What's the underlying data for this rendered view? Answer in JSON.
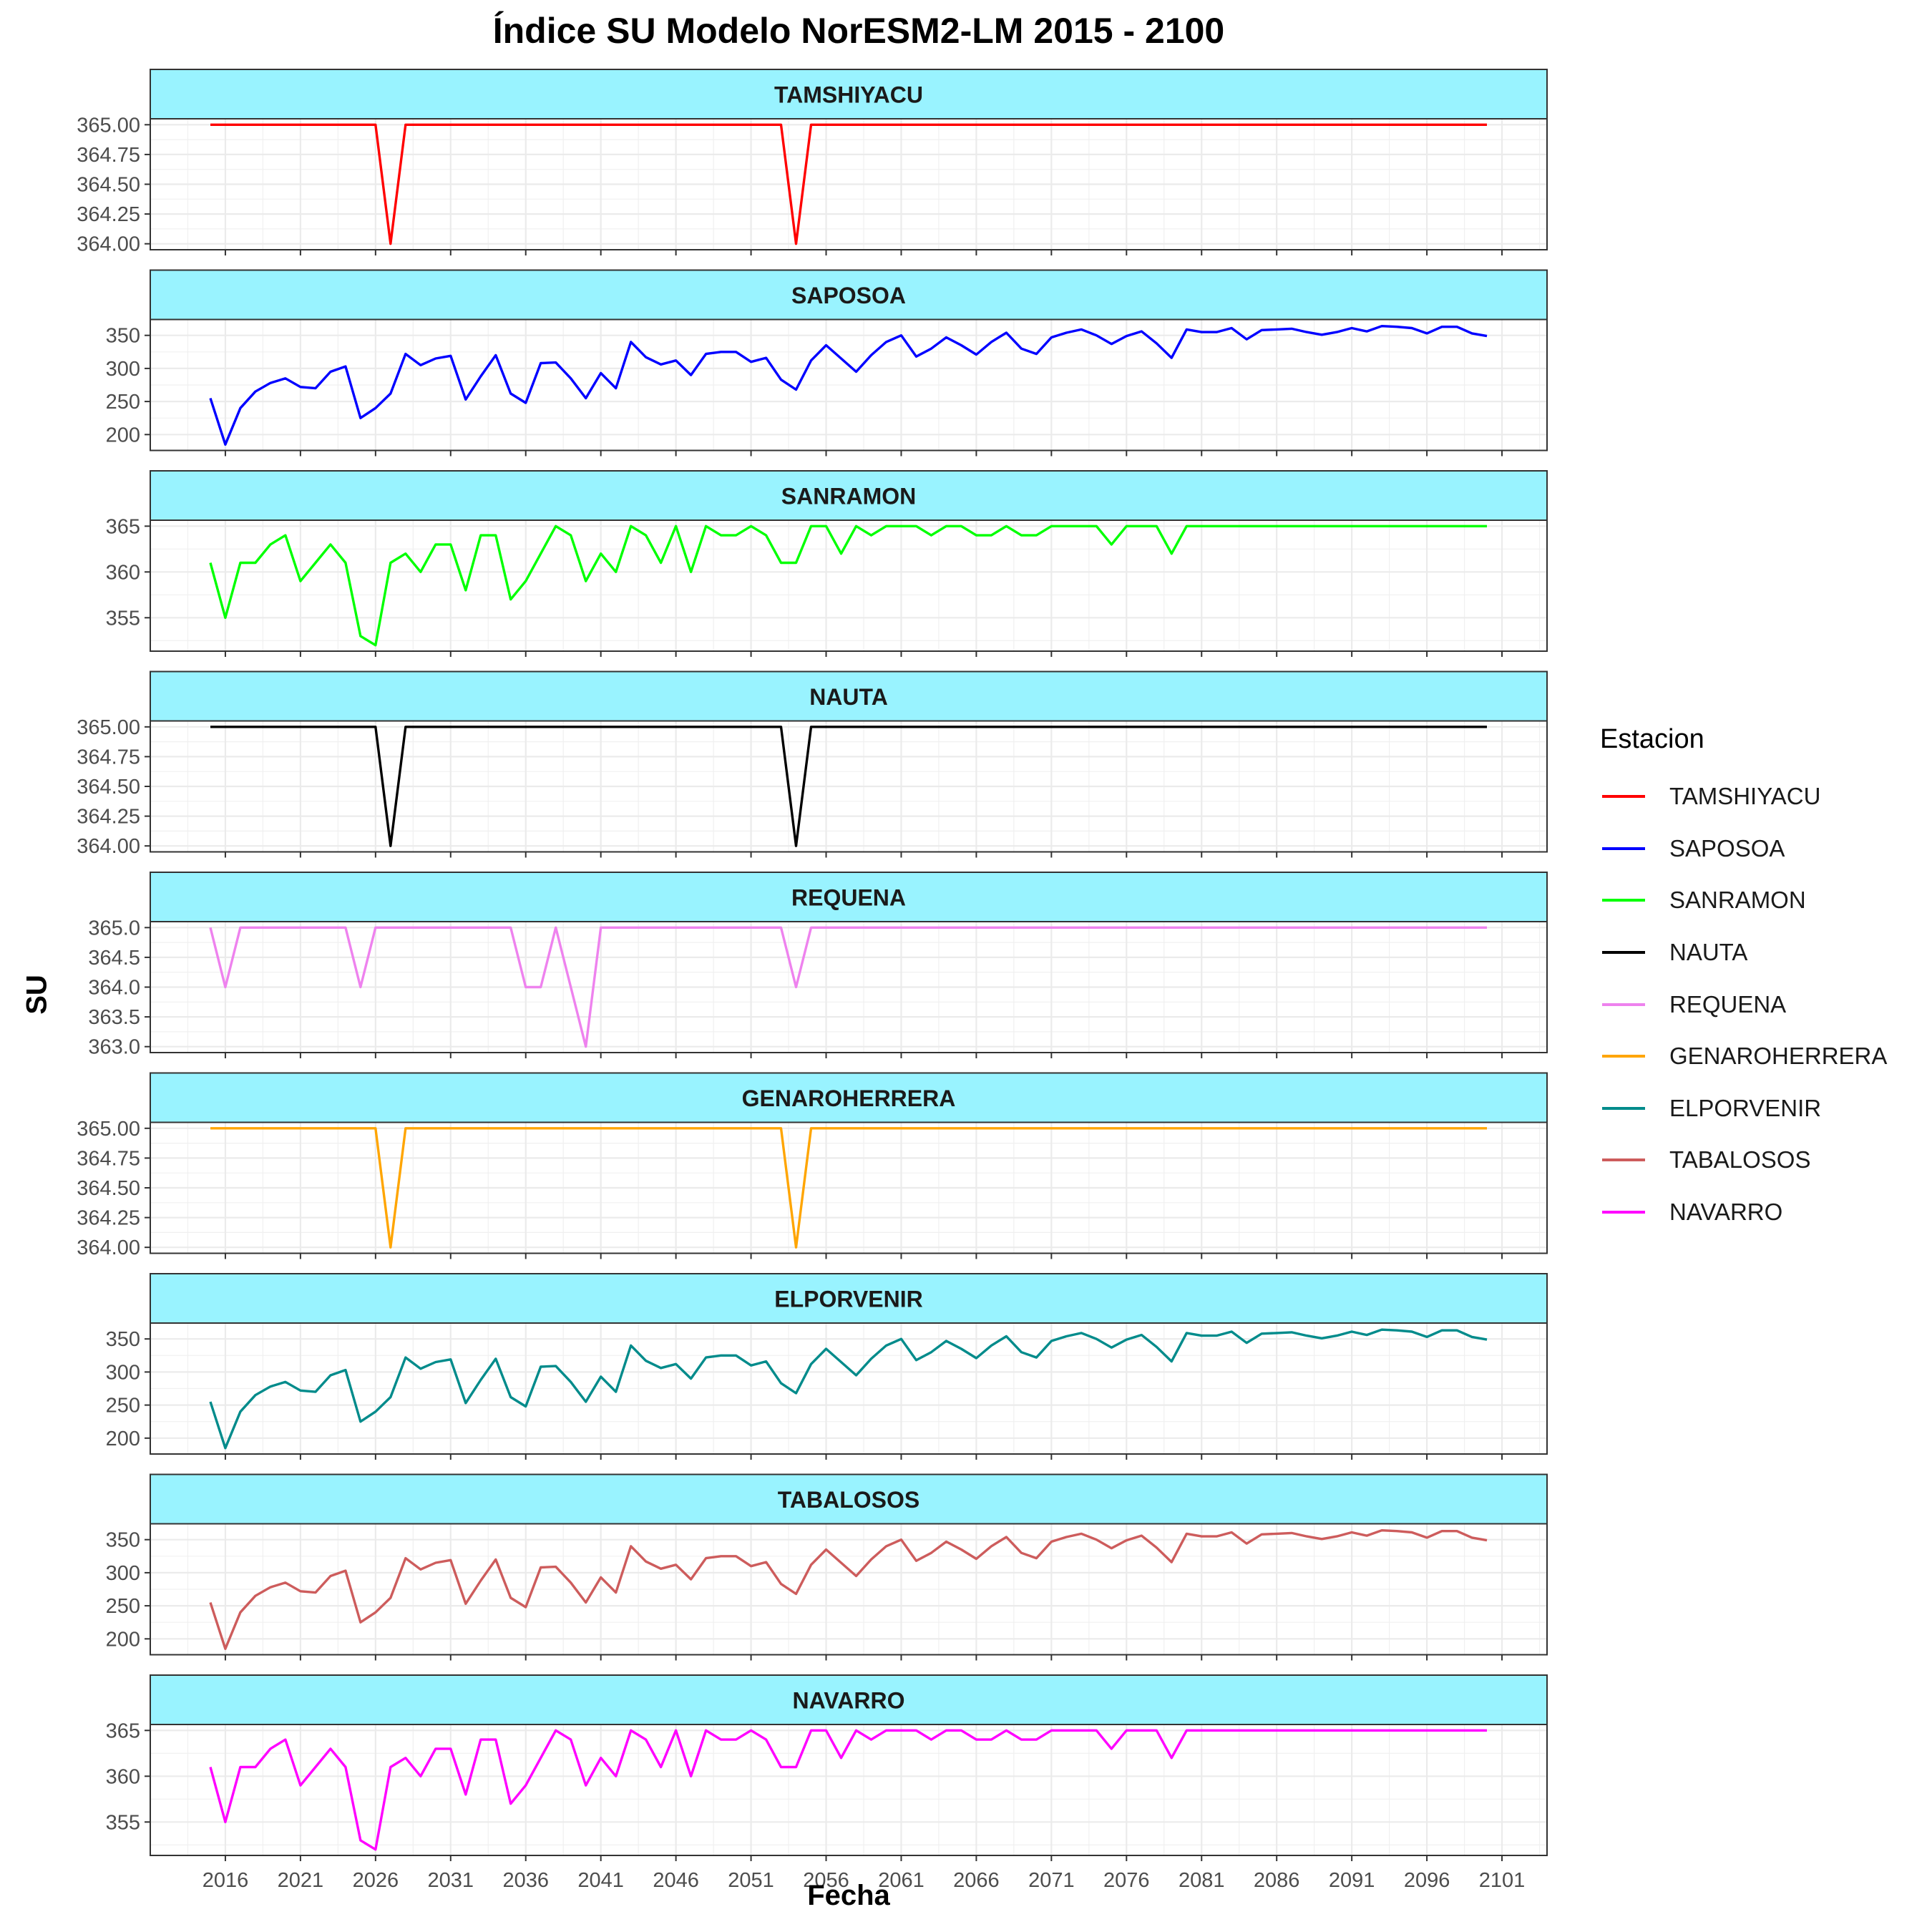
{
  "chart_data": {
    "type": "line",
    "title": "Índice SU Modelo NorESM2-LM 2015 - 2100",
    "xlabel": "Fecha",
    "ylabel": "SU",
    "x_tick_labels": [
      "2016",
      "2021",
      "2026",
      "2031",
      "2036",
      "2041",
      "2046",
      "2051",
      "2056",
      "2061",
      "2066",
      "2071",
      "2076",
      "2081",
      "2086",
      "2091",
      "2096",
      "2101"
    ],
    "xlim": [
      2011,
      2104
    ],
    "x": [
      2015,
      2016,
      2017,
      2018,
      2019,
      2020,
      2021,
      2022,
      2023,
      2024,
      2025,
      2026,
      2027,
      2028,
      2029,
      2030,
      2031,
      2032,
      2033,
      2034,
      2035,
      2036,
      2037,
      2038,
      2039,
      2040,
      2041,
      2042,
      2043,
      2044,
      2045,
      2046,
      2047,
      2048,
      2049,
      2050,
      2051,
      2052,
      2053,
      2054,
      2055,
      2056,
      2057,
      2058,
      2059,
      2060,
      2061,
      2062,
      2063,
      2064,
      2065,
      2066,
      2067,
      2068,
      2069,
      2070,
      2071,
      2072,
      2073,
      2074,
      2075,
      2076,
      2077,
      2078,
      2079,
      2080,
      2081,
      2082,
      2083,
      2084,
      2085,
      2086,
      2087,
      2088,
      2089,
      2090,
      2091,
      2092,
      2093,
      2094,
      2095,
      2096,
      2097,
      2098,
      2099,
      2100
    ],
    "legend_title": "Estacion",
    "legend_position": "right",
    "grid": true,
    "facet_strip_color": "#99f3ff",
    "series": [
      {
        "name": "TAMSHIYACU",
        "color": "#ff0000",
        "ylim": [
          364.0,
          365.0
        ],
        "y_ticks": [
          365.0,
          364.75,
          364.5,
          364.25,
          364.0
        ],
        "y_tick_labels": [
          "365.00",
          "364.75",
          "364.50",
          "364.25",
          "364.00"
        ],
        "values": [
          365,
          365,
          365,
          365,
          365,
          365,
          365,
          365,
          365,
          365,
          365,
          365,
          364,
          365,
          365,
          365,
          365,
          365,
          365,
          365,
          365,
          365,
          365,
          365,
          365,
          365,
          365,
          365,
          365,
          365,
          365,
          365,
          365,
          365,
          365,
          365,
          365,
          365,
          365,
          364,
          365,
          365,
          365,
          365,
          365,
          365,
          365,
          365,
          365,
          365,
          365,
          365,
          365,
          365,
          365,
          365,
          365,
          365,
          365,
          365,
          365,
          365,
          365,
          365,
          365,
          365,
          365,
          365,
          365,
          365,
          365,
          365,
          365,
          365,
          365,
          365,
          365,
          365,
          365,
          365,
          365,
          365,
          365,
          365,
          365,
          365
        ]
      },
      {
        "name": "SAPOSOA",
        "color": "#0000ff",
        "ylim": [
          185,
          365
        ],
        "y_ticks": [
          350,
          300,
          250,
          200
        ],
        "y_tick_labels": [
          "350",
          "300",
          "250",
          "200"
        ],
        "values": [
          255,
          185,
          240,
          265,
          278,
          285,
          272,
          270,
          295,
          303,
          225,
          240,
          262,
          322,
          305,
          315,
          319,
          253,
          288,
          320,
          262,
          248,
          308,
          309,
          285,
          255,
          293,
          270,
          340,
          317,
          306,
          312,
          290,
          322,
          325,
          325,
          310,
          316,
          283,
          268,
          312,
          335,
          315,
          295,
          320,
          340,
          350,
          318,
          330,
          347,
          335,
          321,
          340,
          354,
          330,
          322,
          347,
          354,
          359,
          350,
          337,
          349,
          356,
          338,
          316,
          359,
          355,
          355,
          361,
          344,
          358,
          359,
          360,
          355,
          351,
          355,
          361,
          356,
          364,
          363,
          361,
          353,
          363,
          363,
          353,
          349
        ]
      },
      {
        "name": "SANRAMON",
        "color": "#00ff00",
        "ylim": [
          352,
          365
        ],
        "y_ticks": [
          365,
          360,
          355
        ],
        "y_tick_labels": [
          "365",
          "360",
          "355"
        ],
        "values": [
          361,
          355,
          361,
          361,
          363,
          364,
          359,
          361,
          363,
          361,
          353,
          352,
          361,
          362,
          360,
          363,
          363,
          358,
          364,
          364,
          357,
          359,
          362,
          365,
          364,
          359,
          362,
          360,
          365,
          364,
          361,
          365,
          360,
          365,
          364,
          364,
          365,
          364,
          361,
          361,
          365,
          365,
          362,
          365,
          364,
          365,
          365,
          365,
          364,
          365,
          365,
          364,
          364,
          365,
          364,
          364,
          365,
          365,
          365,
          365,
          363,
          365,
          365,
          365,
          362,
          365,
          365,
          365,
          365,
          365,
          365,
          365,
          365,
          365,
          365,
          365,
          365,
          365,
          365,
          365,
          365,
          365,
          365,
          365,
          365,
          365
        ]
      },
      {
        "name": "NAUTA",
        "color": "#000000",
        "ylim": [
          364.0,
          365.0
        ],
        "y_ticks": [
          365.0,
          364.75,
          364.5,
          364.25,
          364.0
        ],
        "y_tick_labels": [
          "365.00",
          "364.75",
          "364.50",
          "364.25",
          "364.00"
        ],
        "values": [
          365,
          365,
          365,
          365,
          365,
          365,
          365,
          365,
          365,
          365,
          365,
          365,
          364,
          365,
          365,
          365,
          365,
          365,
          365,
          365,
          365,
          365,
          365,
          365,
          365,
          365,
          365,
          365,
          365,
          365,
          365,
          365,
          365,
          365,
          365,
          365,
          365,
          365,
          365,
          364,
          365,
          365,
          365,
          365,
          365,
          365,
          365,
          365,
          365,
          365,
          365,
          365,
          365,
          365,
          365,
          365,
          365,
          365,
          365,
          365,
          365,
          365,
          365,
          365,
          365,
          365,
          365,
          365,
          365,
          365,
          365,
          365,
          365,
          365,
          365,
          365,
          365,
          365,
          365,
          365,
          365,
          365,
          365,
          365,
          365,
          365
        ]
      },
      {
        "name": "REQUENA",
        "color": "#ee82ee",
        "ylim": [
          363.0,
          365.0
        ],
        "y_ticks": [
          365.0,
          364.5,
          364.0,
          363.5,
          363.0
        ],
        "y_tick_labels": [
          "365.0",
          "364.5",
          "364.0",
          "363.5",
          "363.0"
        ],
        "values": [
          365,
          364,
          365,
          365,
          365,
          365,
          365,
          365,
          365,
          365,
          364,
          365,
          365,
          365,
          365,
          365,
          365,
          365,
          365,
          365,
          365,
          364,
          364,
          365,
          364,
          363,
          365,
          365,
          365,
          365,
          365,
          365,
          365,
          365,
          365,
          365,
          365,
          365,
          365,
          364,
          365,
          365,
          365,
          365,
          365,
          365,
          365,
          365,
          365,
          365,
          365,
          365,
          365,
          365,
          365,
          365,
          365,
          365,
          365,
          365,
          365,
          365,
          365,
          365,
          365,
          365,
          365,
          365,
          365,
          365,
          365,
          365,
          365,
          365,
          365,
          365,
          365,
          365,
          365,
          365,
          365,
          365,
          365,
          365,
          365,
          365
        ]
      },
      {
        "name": "GENAROHERRERA",
        "color": "#ffa500",
        "ylim": [
          364.0,
          365.0
        ],
        "y_ticks": [
          365.0,
          364.75,
          364.5,
          364.25,
          364.0
        ],
        "y_tick_labels": [
          "365.00",
          "364.75",
          "364.50",
          "364.25",
          "364.00"
        ],
        "values": [
          365,
          365,
          365,
          365,
          365,
          365,
          365,
          365,
          365,
          365,
          365,
          365,
          364,
          365,
          365,
          365,
          365,
          365,
          365,
          365,
          365,
          365,
          365,
          365,
          365,
          365,
          365,
          365,
          365,
          365,
          365,
          365,
          365,
          365,
          365,
          365,
          365,
          365,
          365,
          364,
          365,
          365,
          365,
          365,
          365,
          365,
          365,
          365,
          365,
          365,
          365,
          365,
          365,
          365,
          365,
          365,
          365,
          365,
          365,
          365,
          365,
          365,
          365,
          365,
          365,
          365,
          365,
          365,
          365,
          365,
          365,
          365,
          365,
          365,
          365,
          365,
          365,
          365,
          365,
          365,
          365,
          365,
          365,
          365,
          365,
          365
        ]
      },
      {
        "name": "ELPORVENIR",
        "color": "#008b8b",
        "ylim": [
          185,
          365
        ],
        "y_ticks": [
          350,
          300,
          250,
          200
        ],
        "y_tick_labels": [
          "350",
          "300",
          "250",
          "200"
        ],
        "values": [
          255,
          185,
          240,
          265,
          278,
          285,
          272,
          270,
          295,
          303,
          225,
          240,
          262,
          322,
          305,
          315,
          319,
          253,
          288,
          320,
          262,
          248,
          308,
          309,
          285,
          255,
          293,
          270,
          340,
          317,
          306,
          312,
          290,
          322,
          325,
          325,
          310,
          316,
          283,
          268,
          312,
          335,
          315,
          295,
          320,
          340,
          350,
          318,
          330,
          347,
          335,
          321,
          340,
          354,
          330,
          322,
          347,
          354,
          359,
          350,
          337,
          349,
          356,
          338,
          316,
          359,
          355,
          355,
          361,
          344,
          358,
          359,
          360,
          355,
          351,
          355,
          361,
          356,
          364,
          363,
          361,
          353,
          363,
          363,
          353,
          349
        ]
      },
      {
        "name": "TABALOSOS",
        "color": "#cd5c5c",
        "ylim": [
          185,
          365
        ],
        "y_ticks": [
          350,
          300,
          250,
          200
        ],
        "y_tick_labels": [
          "350",
          "300",
          "250",
          "200"
        ],
        "values": [
          255,
          185,
          240,
          265,
          278,
          285,
          272,
          270,
          295,
          303,
          225,
          240,
          262,
          322,
          305,
          315,
          319,
          253,
          288,
          320,
          262,
          248,
          308,
          309,
          285,
          255,
          293,
          270,
          340,
          317,
          306,
          312,
          290,
          322,
          325,
          325,
          310,
          316,
          283,
          268,
          312,
          335,
          315,
          295,
          320,
          340,
          350,
          318,
          330,
          347,
          335,
          321,
          340,
          354,
          330,
          322,
          347,
          354,
          359,
          350,
          337,
          349,
          356,
          338,
          316,
          359,
          355,
          355,
          361,
          344,
          358,
          359,
          360,
          355,
          351,
          355,
          361,
          356,
          364,
          363,
          361,
          353,
          363,
          363,
          353,
          349
        ]
      },
      {
        "name": "NAVARRO",
        "color": "#ff00ff",
        "ylim": [
          352,
          365
        ],
        "y_ticks": [
          365,
          360,
          355
        ],
        "y_tick_labels": [
          "365",
          "360",
          "355"
        ],
        "values": [
          361,
          355,
          361,
          361,
          363,
          364,
          359,
          361,
          363,
          361,
          353,
          352,
          361,
          362,
          360,
          363,
          363,
          358,
          364,
          364,
          357,
          359,
          362,
          365,
          364,
          359,
          362,
          360,
          365,
          364,
          361,
          365,
          360,
          365,
          364,
          364,
          365,
          364,
          361,
          361,
          365,
          365,
          362,
          365,
          364,
          365,
          365,
          365,
          364,
          365,
          365,
          364,
          364,
          365,
          364,
          364,
          365,
          365,
          365,
          365,
          363,
          365,
          365,
          365,
          362,
          365,
          365,
          365,
          365,
          365,
          365,
          365,
          365,
          365,
          365,
          365,
          365,
          365,
          365,
          365,
          365,
          365,
          365,
          365,
          365,
          365
        ]
      }
    ]
  }
}
